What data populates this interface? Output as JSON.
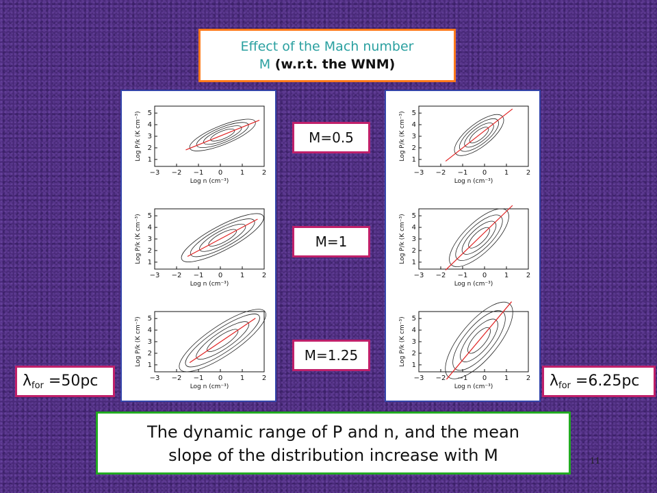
{
  "title": {
    "line1": "Effect of the Mach number",
    "line2_m": "M",
    "line2_rest": " (w.r.t. the WNM)"
  },
  "mach_labels": [
    "M=0.5",
    "M=1",
    "M=1.25"
  ],
  "lambda": {
    "symbol": "λ",
    "sub": "for",
    "left_value": " =50pc",
    "right_value": " =6.25pc"
  },
  "plot_text": {
    "ylabel": "Log P/k (K cm⁻³)",
    "xlabel": "Log  n (cm⁻³)",
    "xticks": [
      "−3",
      "−2",
      "−1",
      "0",
      "1",
      "2"
    ],
    "yticks": [
      "1",
      "2",
      "3",
      "4",
      "5"
    ]
  },
  "conclusion": {
    "line1": "The dynamic range of P and n, and the mean",
    "line2": "slope of the distribution increase with M"
  },
  "page_number": "11"
}
